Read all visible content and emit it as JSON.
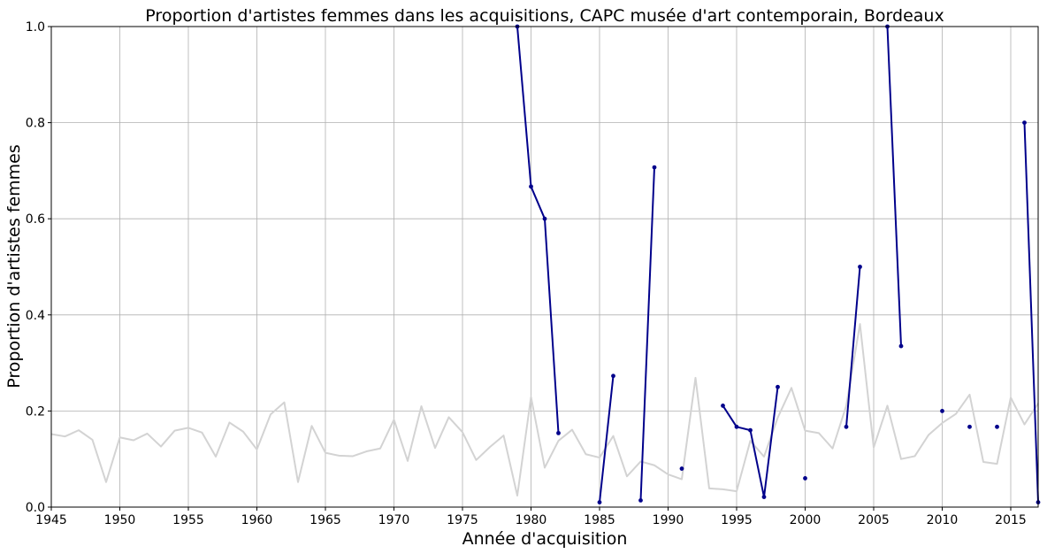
{
  "chart_data": {
    "type": "line",
    "title": "Proportion d'artistes femmes dans les acquisitions, CAPC musée d'art contemporain, Bordeaux",
    "xlabel": "Année d'acquisition",
    "ylabel": "Proportion d'artistes femmes",
    "xlim": [
      1945,
      2017
    ],
    "ylim": [
      0,
      1.0
    ],
    "grid": true,
    "x_ticks": [
      1945,
      1950,
      1955,
      1960,
      1965,
      1970,
      1975,
      1980,
      1985,
      1990,
      1995,
      2000,
      2005,
      2010,
      2015
    ],
    "y_ticks": [
      0.0,
      0.2,
      0.4,
      0.6,
      0.8,
      1.0
    ],
    "x_tick_labels": [
      "1945",
      "1950",
      "1955",
      "1960",
      "1965",
      "1970",
      "1975",
      "1980",
      "1985",
      "1990",
      "1995",
      "2000",
      "2005",
      "2010",
      "2015"
    ],
    "y_tick_labels": [
      "0.0",
      "0.2",
      "0.4",
      "0.6",
      "0.8",
      "1.0"
    ],
    "series": [
      {
        "color": "#d3d3d3",
        "markers": false,
        "points": [
          [
            1945,
            0.152
          ],
          [
            1946,
            0.147
          ],
          [
            1947,
            0.16
          ],
          [
            1948,
            0.14
          ],
          [
            1949,
            0.052
          ],
          [
            1950,
            0.145
          ],
          [
            1951,
            0.139
          ],
          [
            1952,
            0.153
          ],
          [
            1953,
            0.126
          ],
          [
            1954,
            0.159
          ],
          [
            1955,
            0.165
          ],
          [
            1956,
            0.155
          ],
          [
            1957,
            0.105
          ],
          [
            1958,
            0.176
          ],
          [
            1959,
            0.157
          ],
          [
            1960,
            0.12
          ],
          [
            1961,
            0.193
          ],
          [
            1962,
            0.218
          ],
          [
            1963,
            0.052
          ],
          [
            1964,
            0.169
          ],
          [
            1965,
            0.113
          ],
          [
            1966,
            0.107
          ],
          [
            1967,
            0.106
          ],
          [
            1968,
            0.116
          ],
          [
            1969,
            0.122
          ],
          [
            1970,
            0.182
          ],
          [
            1971,
            0.096
          ],
          [
            1972,
            0.21
          ],
          [
            1973,
            0.123
          ],
          [
            1974,
            0.187
          ],
          [
            1975,
            0.156
          ],
          [
            1976,
            0.098
          ],
          [
            1977,
            0.125
          ],
          [
            1978,
            0.149
          ],
          [
            1979,
            0.024
          ],
          [
            1980,
            0.229
          ],
          [
            1981,
            0.082
          ],
          [
            1982,
            0.138
          ],
          [
            1983,
            0.161
          ],
          [
            1984,
            0.11
          ],
          [
            1985,
            0.103
          ],
          [
            1986,
            0.148
          ],
          [
            1987,
            0.064
          ],
          [
            1988,
            0.095
          ],
          [
            1989,
            0.087
          ],
          [
            1990,
            0.068
          ],
          [
            1991,
            0.058
          ],
          [
            1992,
            0.269
          ],
          [
            1993,
            0.039
          ],
          [
            1994,
            0.037
          ],
          [
            1995,
            0.033
          ],
          [
            1996,
            0.138
          ],
          [
            1997,
            0.105
          ],
          [
            1998,
            0.186
          ],
          [
            1999,
            0.248
          ],
          [
            2000,
            0.159
          ],
          [
            2001,
            0.154
          ],
          [
            2002,
            0.122
          ],
          [
            2003,
            0.211
          ],
          [
            2004,
            0.381
          ],
          [
            2005,
            0.124
          ],
          [
            2006,
            0.211
          ],
          [
            2007,
            0.1
          ],
          [
            2008,
            0.106
          ],
          [
            2009,
            0.15
          ],
          [
            2010,
            0.175
          ],
          [
            2011,
            0.194
          ],
          [
            2012,
            0.234
          ],
          [
            2013,
            0.094
          ],
          [
            2014,
            0.09
          ],
          [
            2015,
            0.228
          ],
          [
            2016,
            0.172
          ],
          [
            2017,
            0.216
          ]
        ]
      },
      {
        "color": "#00008b",
        "markers": true,
        "points": [
          [
            1979,
            1.0
          ],
          [
            1980,
            0.667
          ],
          [
            1981,
            0.6
          ],
          [
            1982,
            0.154
          ],
          [
            1983,
            null
          ],
          [
            1984,
            null
          ],
          [
            1985,
            0.01
          ],
          [
            1986,
            0.273
          ],
          [
            1987,
            null
          ],
          [
            1988,
            0.014
          ],
          [
            1989,
            0.707
          ],
          [
            1990,
            null
          ],
          [
            1991,
            0.08
          ],
          [
            1992,
            null
          ],
          [
            1993,
            null
          ],
          [
            1994,
            0.211
          ],
          [
            1995,
            0.167
          ],
          [
            1996,
            0.16
          ],
          [
            1997,
            0.021
          ],
          [
            1998,
            0.25
          ],
          [
            1999,
            null
          ],
          [
            2000,
            0.06
          ],
          [
            2001,
            null
          ],
          [
            2002,
            null
          ],
          [
            2003,
            0.167
          ],
          [
            2004,
            0.5
          ],
          [
            2005,
            null
          ],
          [
            2006,
            1.0
          ],
          [
            2007,
            0.335
          ],
          [
            2008,
            null
          ],
          [
            2009,
            null
          ],
          [
            2010,
            0.2
          ],
          [
            2011,
            null
          ],
          [
            2012,
            0.167
          ],
          [
            2013,
            null
          ],
          [
            2014,
            0.167
          ],
          [
            2015,
            null
          ],
          [
            2016,
            0.8
          ],
          [
            2017,
            0.01
          ]
        ]
      }
    ]
  }
}
